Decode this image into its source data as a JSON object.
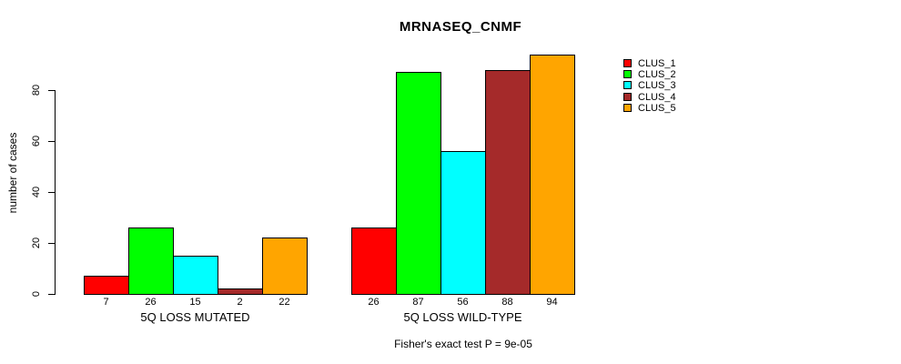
{
  "chart_data": {
    "type": "bar",
    "title": "MRNASEQ_CNMF",
    "xlabel": "",
    "ylabel": "number of cases",
    "ylim": [
      0,
      94
    ],
    "yticks": [
      0,
      20,
      40,
      60,
      80
    ],
    "grid": false,
    "legend_position": "right",
    "categories": [
      "5Q LOSS MUTATED",
      "5Q LOSS WILD-TYPE"
    ],
    "series": [
      {
        "name": "CLUS_1",
        "color": "#ff0000",
        "values": [
          7,
          26
        ]
      },
      {
        "name": "CLUS_2",
        "color": "#00ff00",
        "values": [
          26,
          87
        ]
      },
      {
        "name": "CLUS_3",
        "color": "#00ffff",
        "values": [
          15,
          56
        ]
      },
      {
        "name": "CLUS_4",
        "color": "#a52a2a",
        "values": [
          2,
          88
        ]
      },
      {
        "name": "CLUS_5",
        "color": "#ffa500",
        "values": [
          22,
          94
        ]
      }
    ],
    "bar_value_labels": [
      [
        7,
        26,
        15,
        2,
        22
      ],
      [
        26,
        87,
        56,
        88,
        94
      ]
    ],
    "footnote": "Fisher's exact test P = 9e-05"
  },
  "legend": {
    "items": [
      {
        "label": "CLUS_1",
        "color": "#ff0000"
      },
      {
        "label": "CLUS_2",
        "color": "#00ff00"
      },
      {
        "label": "CLUS_3",
        "color": "#00ffff"
      },
      {
        "label": "CLUS_4",
        "color": "#a52a2a"
      },
      {
        "label": "CLUS_5",
        "color": "#ffa500"
      }
    ]
  }
}
